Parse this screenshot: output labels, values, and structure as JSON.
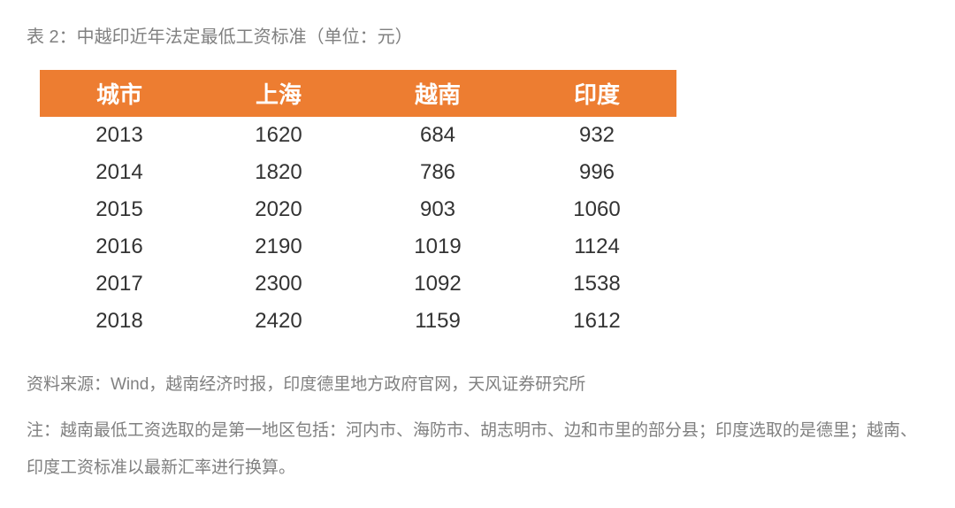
{
  "title": "表 2：中越印近年法定最低工资标准（单位：元）",
  "table": {
    "columns": [
      "城市",
      "上海",
      "越南",
      "印度"
    ],
    "rows": [
      [
        "2013",
        "1620",
        "684",
        "932"
      ],
      [
        "2014",
        "1820",
        "786",
        "996"
      ],
      [
        "2015",
        "2020",
        "903",
        "1060"
      ],
      [
        "2016",
        "2190",
        "1019",
        "1124"
      ],
      [
        "2017",
        "2300",
        "1092",
        "1538"
      ],
      [
        "2018",
        "2420",
        "1159",
        "1612"
      ]
    ],
    "header_bg": "#ed7d31",
    "header_color": "#ffffff",
    "header_fontsize": 26,
    "cell_fontsize": 24,
    "cell_color": "#333333",
    "col_widths": [
      "25%",
      "25%",
      "25%",
      "25%"
    ]
  },
  "source": "资料来源：Wind，越南经济时报，印度德里地方政府官网，天风证券研究所",
  "note": "注：越南最低工资选取的是第一地区包括：河内市、海防市、胡志明市、边和市里的部分县；印度选取的是德里；越南、印度工资标准以最新汇率进行换算。",
  "colors": {
    "title_color": "#808080",
    "footnote_color": "#808080",
    "background": "#ffffff"
  }
}
